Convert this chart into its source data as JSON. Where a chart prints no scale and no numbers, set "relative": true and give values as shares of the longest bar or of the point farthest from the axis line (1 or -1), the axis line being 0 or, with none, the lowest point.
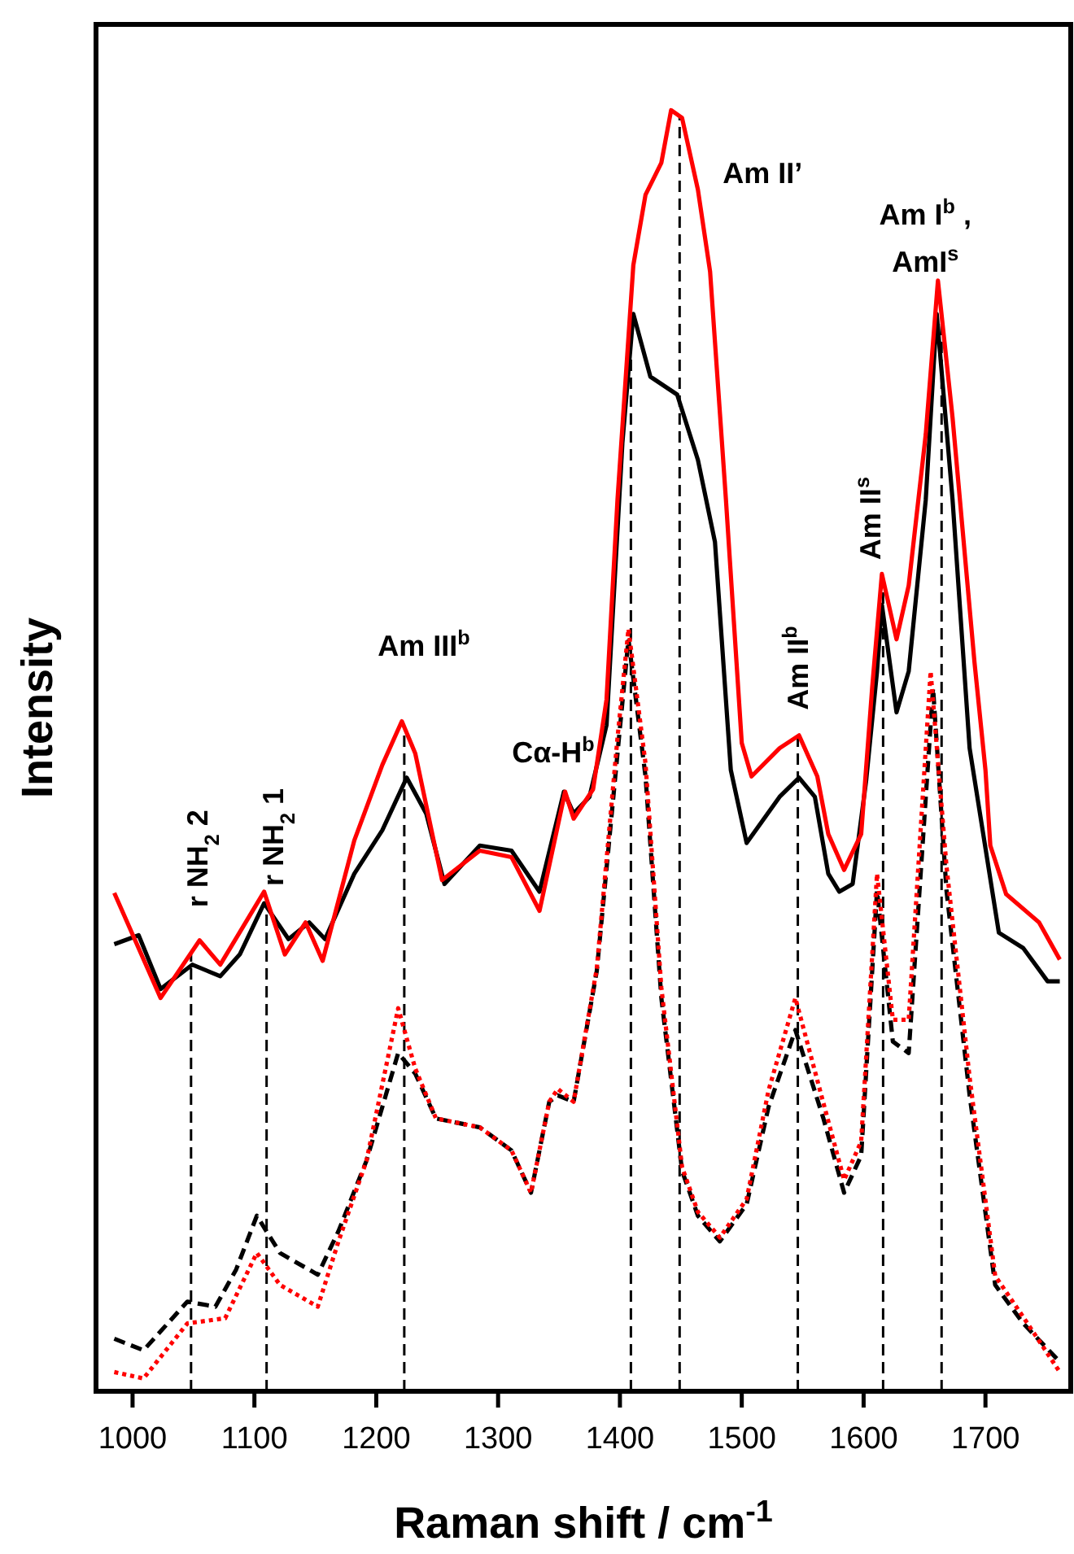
{
  "chart_data": {
    "type": "line",
    "relative": true,
    "xlabel": "Raman shift / cm$^{-1}$",
    "ylabel": "Intensity",
    "xlim": [
      970,
      1770
    ],
    "xticks": [
      1000,
      1100,
      1200,
      1300,
      1400,
      1500,
      1600,
      1700
    ],
    "series": [
      {
        "color": "#000000",
        "line_style": "solid",
        "x": [
          985,
          1005,
          1023,
          1049,
          1072,
          1088,
          1108,
          1128,
          1145,
          1158,
          1182,
          1205,
          1225,
          1241,
          1256,
          1285,
          1311,
          1334,
          1354,
          1362,
          1375,
          1389,
          1402,
          1411,
          1425,
          1447,
          1464,
          1478,
          1491,
          1504,
          1531,
          1547,
          1560,
          1571,
          1580,
          1591,
          1602,
          1611,
          1615,
          1627,
          1637,
          1651,
          1660,
          1673,
          1687,
          1711,
          1731,
          1751,
          1761
        ],
        "values": [
          0.349,
          0.356,
          0.314,
          0.333,
          0.324,
          0.341,
          0.381,
          0.353,
          0.366,
          0.353,
          0.404,
          0.438,
          0.479,
          0.451,
          0.396,
          0.426,
          0.422,
          0.39,
          0.468,
          0.451,
          0.464,
          0.52,
          0.74,
          0.841,
          0.792,
          0.778,
          0.727,
          0.663,
          0.485,
          0.428,
          0.464,
          0.479,
          0.464,
          0.404,
          0.39,
          0.396,
          0.476,
          0.562,
          0.614,
          0.53,
          0.562,
          0.696,
          0.841,
          0.696,
          0.502,
          0.358,
          0.346,
          0.32,
          0.32
        ]
      },
      {
        "color": "#ff0000",
        "line_style": "solid",
        "x": [
          985,
          1023,
          1055,
          1072,
          1108,
          1125,
          1142,
          1156,
          1182,
          1205,
          1221,
          1232,
          1254,
          1285,
          1311,
          1334,
          1355,
          1362,
          1378,
          1389,
          1398,
          1411,
          1421,
          1434,
          1442,
          1451,
          1464,
          1474,
          1487,
          1500,
          1508,
          1531,
          1547,
          1562,
          1571,
          1584,
          1598,
          1607,
          1615,
          1627,
          1637,
          1651,
          1661,
          1673,
          1691,
          1700,
          1704,
          1717,
          1744,
          1761
        ],
        "values": [
          0.389,
          0.307,
          0.352,
          0.333,
          0.39,
          0.341,
          0.366,
          0.336,
          0.43,
          0.489,
          0.523,
          0.498,
          0.399,
          0.422,
          0.417,
          0.375,
          0.468,
          0.447,
          0.47,
          0.54,
          0.696,
          0.879,
          0.934,
          0.959,
          1.0,
          0.994,
          0.938,
          0.874,
          0.696,
          0.506,
          0.48,
          0.502,
          0.512,
          0.48,
          0.435,
          0.407,
          0.435,
          0.549,
          0.638,
          0.587,
          0.629,
          0.747,
          0.867,
          0.76,
          0.569,
          0.485,
          0.426,
          0.388,
          0.366,
          0.337
        ]
      },
      {
        "color": "#000000",
        "line_style": "dashed",
        "x": [
          985,
          1009,
          1045,
          1068,
          1085,
          1102,
          1121,
          1152,
          1169,
          1192,
          1205,
          1218,
          1232,
          1249,
          1285,
          1311,
          1327,
          1342,
          1349,
          1362,
          1381,
          1398,
          1407,
          1421,
          1434,
          1451,
          1464,
          1482,
          1504,
          1522,
          1544,
          1567,
          1584,
          1598,
          1611,
          1624,
          1637,
          1657,
          1668,
          1687,
          1708,
          1731,
          1761
        ],
        "values": [
          0.041,
          0.032,
          0.07,
          0.066,
          0.095,
          0.137,
          0.108,
          0.091,
          0.125,
          0.18,
          0.222,
          0.264,
          0.248,
          0.213,
          0.206,
          0.188,
          0.155,
          0.226,
          0.231,
          0.226,
          0.328,
          0.498,
          0.587,
          0.48,
          0.307,
          0.172,
          0.137,
          0.117,
          0.146,
          0.222,
          0.282,
          0.213,
          0.155,
          0.184,
          0.391,
          0.273,
          0.264,
          0.549,
          0.391,
          0.231,
          0.083,
          0.053,
          0.023
        ]
      },
      {
        "color": "#ff0000",
        "line_style": "dotted",
        "x": [
          985,
          1009,
          1045,
          1076,
          1102,
          1121,
          1152,
          1169,
          1192,
          1218,
          1232,
          1249,
          1285,
          1311,
          1327,
          1342,
          1349,
          1362,
          1381,
          1398,
          1407,
          1421,
          1434,
          1451,
          1464,
          1482,
          1504,
          1522,
          1544,
          1567,
          1584,
          1598,
          1611,
          1624,
          1637,
          1655,
          1668,
          1687,
          1708,
          1731,
          1761
        ],
        "values": [
          0.015,
          0.01,
          0.053,
          0.057,
          0.108,
          0.083,
          0.066,
          0.117,
          0.18,
          0.299,
          0.252,
          0.213,
          0.206,
          0.188,
          0.155,
          0.226,
          0.236,
          0.226,
          0.33,
          0.51,
          0.595,
          0.49,
          0.315,
          0.175,
          0.14,
          0.12,
          0.15,
          0.235,
          0.307,
          0.225,
          0.165,
          0.195,
          0.404,
          0.29,
          0.29,
          0.562,
          0.41,
          0.245,
          0.09,
          0.058,
          0.015
        ]
      }
    ],
    "ref_lines": [
      {
        "axis": "x",
        "value": 1048,
        "color": "#000000",
        "line_style": "dashed",
        "label": "r NH$_{2}$ 2"
      },
      {
        "axis": "x",
        "value": 1110,
        "color": "#000000",
        "line_style": "dashed",
        "label": "r NH$_{2}$ 1"
      },
      {
        "axis": "x",
        "value": 1223,
        "color": "#000000",
        "line_style": "dashed",
        "label": "Am III$^{b}$"
      },
      {
        "axis": "x",
        "value": 1409,
        "color": "#000000",
        "line_style": "dashed"
      },
      {
        "axis": "x",
        "value": 1449,
        "color": "#000000",
        "line_style": "dashed",
        "label": "Am II’"
      },
      {
        "axis": "x",
        "value": 1546,
        "color": "#000000",
        "line_style": "dashed",
        "label": "Am II$^{b}$"
      },
      {
        "axis": "x",
        "value": 1616,
        "color": "#000000",
        "line_style": "dashed",
        "label": "Am II$^{s}$"
      },
      {
        "axis": "x",
        "value": 1664,
        "color": "#000000",
        "line_style": "dashed",
        "label": "Am I$^{b}$ ,\nAmI$^{s}$"
      }
    ],
    "annotations": [
      "Cα-H$^{b}$"
    ]
  }
}
